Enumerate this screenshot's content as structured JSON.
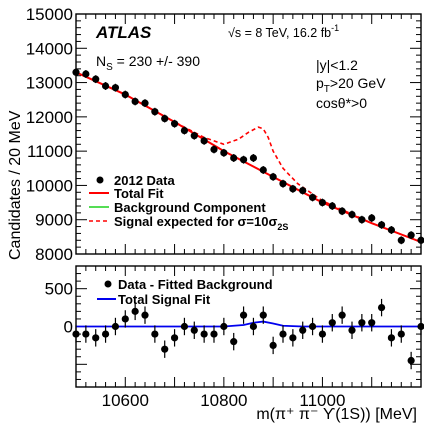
{
  "header": {
    "experiment": "ATLAS",
    "energy": "√s = 8 TeV, 16.2 fb",
    "energy_sup": "-1",
    "ns": "N",
    "ns_sub": "S",
    "ns_val": " = 230 +/- 390",
    "cut1": "|y|<1.2",
    "cut2_a": "p",
    "cut2_sub": "T",
    "cut2_b": ">20 GeV",
    "cut3": "cosθ*>0"
  },
  "legend_top": {
    "data": "2012 Data",
    "total_fit": "Total Fit",
    "background": "Background Component",
    "signal": "Signal expected for  σ=10σ",
    "signal_sub": "2S"
  },
  "legend_bottom": {
    "data": "Data - Fitted Background",
    "signal_fit": "Total Signal Fit"
  },
  "colors": {
    "data": "#000000",
    "total_fit": "#ff0000",
    "background": "#55dd55",
    "signal_expected": "#ff0000",
    "signal_fit": "#0000ee"
  },
  "chart_data": [
    {
      "type": "scatter",
      "ylabel": "Candidates / 20 MeV",
      "xlim": [
        10500,
        11200
      ],
      "ylim": [
        8000,
        15000
      ],
      "yticks": [
        8000,
        9000,
        10000,
        11000,
        12000,
        13000,
        14000,
        15000
      ],
      "ytick_labels": [
        "8000",
        "9000",
        "10000",
        "11000",
        "12000",
        "13000",
        "14000",
        "15000"
      ],
      "data_points": {
        "x": [
          10500,
          10520,
          10540,
          10560,
          10580,
          10600,
          10620,
          10640,
          10660,
          10680,
          10700,
          10720,
          10740,
          10760,
          10780,
          10800,
          10820,
          10840,
          10860,
          10880,
          10900,
          10920,
          10940,
          10960,
          10980,
          11000,
          11020,
          11040,
          11060,
          11080,
          11100,
          11120,
          11140,
          11160,
          11180,
          11200
        ],
        "y": [
          13300,
          13250,
          13100,
          12900,
          12850,
          12650,
          12450,
          12400,
          12150,
          11950,
          11800,
          11600,
          11450,
          11300,
          11050,
          10950,
          10800,
          10750,
          10800,
          10450,
          10250,
          10050,
          9900,
          9850,
          9650,
          9500,
          9400,
          9250,
          9150,
          9000,
          9050,
          8850,
          8700,
          8400,
          8550,
          8400
        ],
        "err": 115
      },
      "total_fit": {
        "x": [
          10500,
          10600,
          10700,
          10800,
          10900,
          11000,
          11100,
          11200
        ],
        "y": [
          13300,
          12650,
          11850,
          11000,
          10250,
          9500,
          8900,
          8350
        ]
      },
      "signal_expected": {
        "x": [
          10500,
          10600,
          10700,
          10760,
          10800,
          10830,
          10850,
          10870,
          10880,
          10890,
          10900,
          10920,
          10950,
          11000,
          11100,
          11200
        ],
        "y": [
          13300,
          12650,
          11850,
          11400,
          11200,
          11350,
          11550,
          11700,
          11650,
          11400,
          11000,
          10500,
          10050,
          9550,
          8900,
          8350
        ]
      }
    },
    {
      "type": "scatter",
      "xlabel": "m(π⁺ π⁻ ϒ(1S)) [MeV]",
      "xlim": [
        10500,
        11200
      ],
      "ylim": [
        -800,
        800
      ],
      "xticks": [
        10600,
        10800,
        11000
      ],
      "xtick_labels": [
        "10600",
        "10800",
        "11000"
      ],
      "yticks": [
        0,
        500
      ],
      "ytick_labels": [
        "0",
        "500"
      ],
      "data_points": {
        "x": [
          10500,
          10520,
          10540,
          10560,
          10580,
          10600,
          10620,
          10640,
          10660,
          10680,
          10700,
          10720,
          10740,
          10760,
          10780,
          10800,
          10820,
          10840,
          10860,
          10880,
          10900,
          10920,
          10940,
          10960,
          10980,
          11000,
          11020,
          11040,
          11060,
          11080,
          11100,
          11120,
          11140,
          11160,
          11180,
          11200
        ],
        "y": [
          -100,
          -100,
          -150,
          -100,
          0,
          100,
          200,
          150,
          -100,
          -300,
          -150,
          0,
          -50,
          -100,
          -100,
          0,
          -200,
          150,
          0,
          150,
          -250,
          -100,
          -150,
          -50,
          0,
          -100,
          50,
          150,
          -50,
          50,
          50,
          250,
          -150,
          -100,
          -450,
          0
        ],
        "err": 115
      },
      "signal_fit": {
        "x": [
          10500,
          10800,
          10840,
          10860,
          10880,
          10900,
          10920,
          10960,
          11200
        ],
        "y": [
          0,
          0,
          20,
          50,
          65,
          40,
          10,
          0,
          0
        ]
      }
    }
  ]
}
